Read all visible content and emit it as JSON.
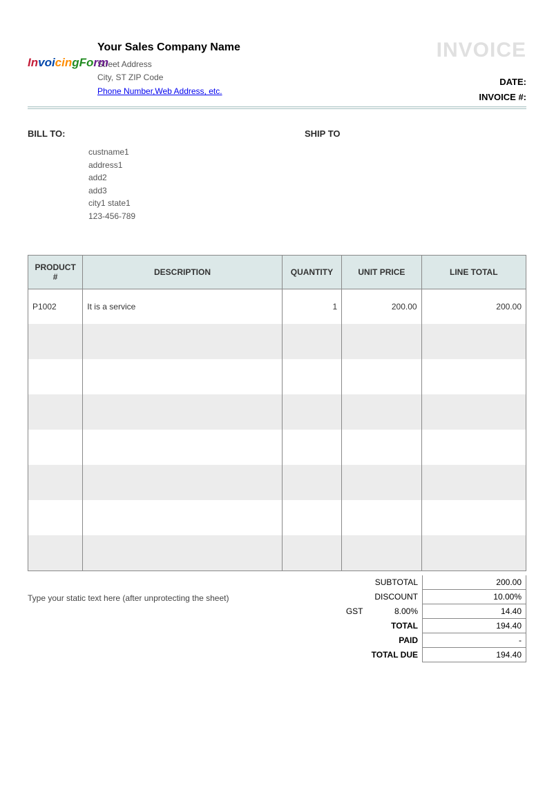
{
  "header": {
    "company_name": "Your Sales Company Name",
    "street": "Street Address",
    "city_line": "City, ST  ZIP Code",
    "contact_link": "Phone Number,Web Address, etc.",
    "invoice_title": "INVOICE",
    "date_label": "DATE:",
    "invoice_no_label": "INVOICE #:"
  },
  "logo": {
    "text": "InvoicingForm",
    "colors": [
      "#c41e3a",
      "#0047ab",
      "#ff8c00",
      "#228b22",
      "#6b1f8e"
    ]
  },
  "bill_to": {
    "label": "BILL TO:",
    "name": "custname1",
    "addr1": "address1",
    "addr2": "add2",
    "addr3": "add3",
    "city_state": "city1 state1",
    "phone": "123-456-789"
  },
  "ship_to": {
    "label": "SHIP TO"
  },
  "items_table": {
    "header_bg": "#dce8e8",
    "border_color": "#888888",
    "alt_row_bg": "#ececec",
    "columns": {
      "product": "PRODUCT #",
      "description": "DESCRIPTION",
      "quantity": "QUANTITY",
      "unit_price": "UNIT PRICE",
      "line_total": "LINE TOTAL"
    },
    "rows": [
      {
        "product": "P1002",
        "description": "It is a service",
        "quantity": "1",
        "unit_price": "200.00",
        "line_total": "200.00"
      },
      {
        "product": "",
        "description": "",
        "quantity": "",
        "unit_price": "",
        "line_total": ""
      },
      {
        "product": "",
        "description": "",
        "quantity": "",
        "unit_price": "",
        "line_total": ""
      },
      {
        "product": "",
        "description": "",
        "quantity": "",
        "unit_price": "",
        "line_total": ""
      },
      {
        "product": "",
        "description": "",
        "quantity": "",
        "unit_price": "",
        "line_total": ""
      },
      {
        "product": "",
        "description": "",
        "quantity": "",
        "unit_price": "",
        "line_total": ""
      },
      {
        "product": "",
        "description": "",
        "quantity": "",
        "unit_price": "",
        "line_total": ""
      },
      {
        "product": "",
        "description": "",
        "quantity": "",
        "unit_price": "",
        "line_total": ""
      }
    ]
  },
  "footer_note": "Type your static text here (after unprotecting the sheet)",
  "totals": {
    "subtotal_label": "SUBTOTAL",
    "subtotal_value": "200.00",
    "discount_label": "DISCOUNT",
    "discount_value": "10.00%",
    "gst_label": "GST",
    "gst_rate": "8.00%",
    "gst_value": "14.40",
    "total_label": "TOTAL",
    "total_value": "194.40",
    "paid_label": "PAID",
    "paid_value": "-",
    "due_label": "TOTAL DUE",
    "due_value": "194.40"
  }
}
